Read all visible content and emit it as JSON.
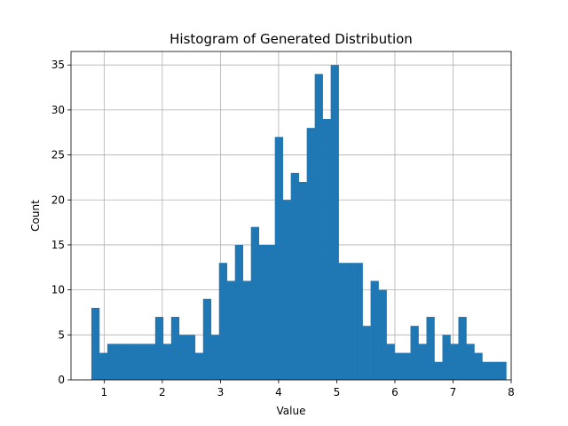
{
  "chart_data": {
    "type": "bar",
    "title": "Histogram of Generated Distribution",
    "xlabel": "Value",
    "ylabel": "Count",
    "xlim": [
      0.43,
      8.0
    ],
    "ylim": [
      0,
      36.5
    ],
    "xticks": [
      1,
      2,
      3,
      4,
      5,
      6,
      7,
      8
    ],
    "yticks": [
      0,
      5,
      10,
      15,
      20,
      25,
      30,
      35
    ],
    "grid": true,
    "bar_color": "#1f77b4",
    "bins": {
      "start": 0.78,
      "width": 0.1372,
      "counts": [
        8,
        3,
        4,
        4,
        4,
        4,
        4,
        4,
        7,
        4,
        7,
        5,
        5,
        3,
        9,
        5,
        13,
        11,
        15,
        11,
        17,
        15,
        15,
        27,
        20,
        23,
        22,
        28,
        34,
        29,
        35,
        13,
        13,
        13,
        6,
        11,
        10,
        4,
        3,
        3,
        6,
        4,
        7,
        2,
        5,
        4,
        7,
        4,
        3,
        2,
        2,
        2
      ]
    }
  }
}
